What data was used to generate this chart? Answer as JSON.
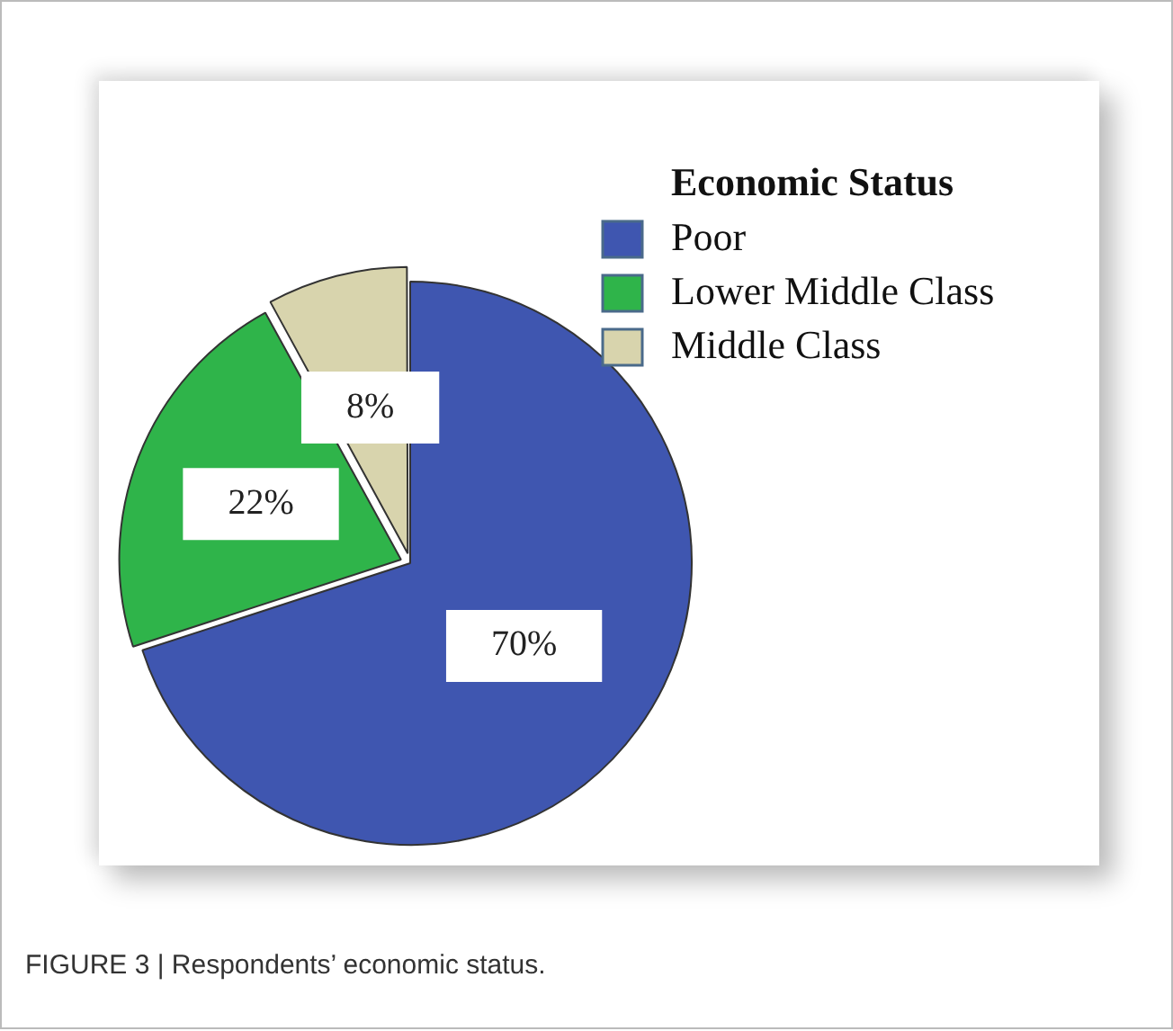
{
  "chart_data": {
    "type": "pie",
    "legend_title": "Economic Status",
    "categories": [
      "Poor",
      "Lower Middle Class",
      "Middle Class"
    ],
    "values": [
      70,
      22,
      8
    ],
    "colors": [
      "#3f56b0",
      "#2fb44a",
      "#d8d4ad"
    ],
    "value_labels": [
      "70%",
      "22%",
      "8%"
    ],
    "legend": "top right",
    "annotations": [
      "FIGURE 3 | Respondents’ economic status."
    ]
  }
}
